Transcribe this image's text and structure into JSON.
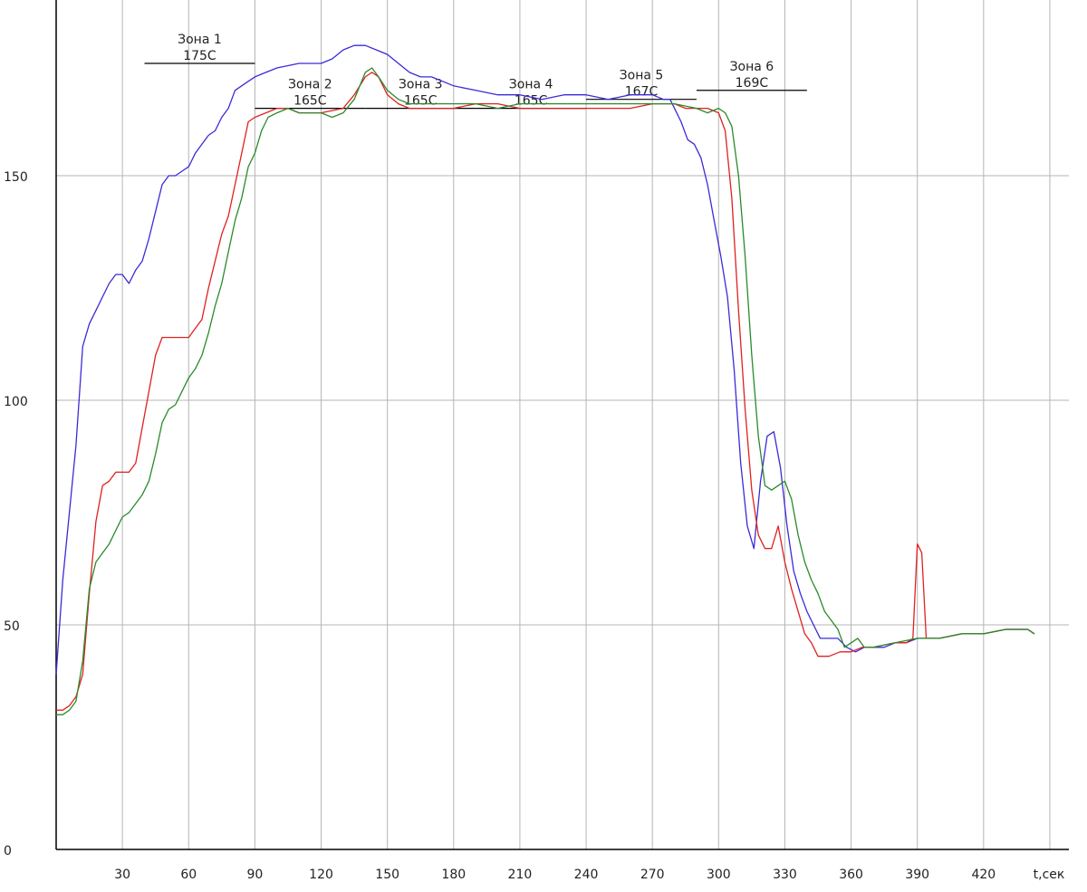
{
  "chart_data": {
    "type": "line",
    "xlabel": "t,сек",
    "ylabel": "",
    "xlim": [
      0,
      460
    ],
    "ylim": [
      0,
      185
    ],
    "x_ticks": [
      30,
      60,
      90,
      120,
      150,
      180,
      210,
      240,
      270,
      300,
      330,
      360,
      390,
      420
    ],
    "y_ticks": [
      0,
      50,
      100,
      150
    ],
    "grid": true,
    "zones": [
      {
        "name": "Зона 1",
        "temp": "175С",
        "x_start": 40,
        "x_end": 90,
        "y": 175
      },
      {
        "name": "Зона 2",
        "temp": "165С",
        "x_start": 90,
        "x_end": 140,
        "y": 165
      },
      {
        "name": "Зона 3",
        "temp": "165С",
        "x_start": 140,
        "x_end": 190,
        "y": 165
      },
      {
        "name": "Зона 4",
        "temp": "165С",
        "x_start": 190,
        "x_end": 240,
        "y": 165
      },
      {
        "name": "Зона 5",
        "temp": "167С",
        "x_start": 240,
        "x_end": 290,
        "y": 167
      },
      {
        "name": "Зона 6",
        "temp": "169С",
        "x_start": 290,
        "x_end": 340,
        "y": 169
      }
    ],
    "series": [
      {
        "color": "#3b2bd8",
        "points": [
          [
            0,
            39
          ],
          [
            3,
            60
          ],
          [
            6,
            75
          ],
          [
            9,
            90
          ],
          [
            12,
            112
          ],
          [
            15,
            117
          ],
          [
            18,
            120
          ],
          [
            21,
            123
          ],
          [
            24,
            126
          ],
          [
            27,
            128
          ],
          [
            30,
            128
          ],
          [
            33,
            126
          ],
          [
            36,
            129
          ],
          [
            39,
            131
          ],
          [
            42,
            136
          ],
          [
            45,
            142
          ],
          [
            48,
            148
          ],
          [
            51,
            150
          ],
          [
            54,
            150
          ],
          [
            57,
            151
          ],
          [
            60,
            152
          ],
          [
            63,
            155
          ],
          [
            66,
            157
          ],
          [
            69,
            159
          ],
          [
            72,
            160
          ],
          [
            75,
            163
          ],
          [
            78,
            165
          ],
          [
            81,
            169
          ],
          [
            84,
            170
          ],
          [
            87,
            171
          ],
          [
            90,
            172
          ],
          [
            95,
            173
          ],
          [
            100,
            174
          ],
          [
            110,
            175
          ],
          [
            120,
            175
          ],
          [
            125,
            176
          ],
          [
            130,
            178
          ],
          [
            135,
            179
          ],
          [
            140,
            179
          ],
          [
            145,
            178
          ],
          [
            150,
            177
          ],
          [
            155,
            175
          ],
          [
            160,
            173
          ],
          [
            165,
            172
          ],
          [
            170,
            172
          ],
          [
            175,
            171
          ],
          [
            180,
            170
          ],
          [
            190,
            169
          ],
          [
            200,
            168
          ],
          [
            210,
            168
          ],
          [
            220,
            167
          ],
          [
            230,
            168
          ],
          [
            240,
            168
          ],
          [
            250,
            167
          ],
          [
            260,
            168
          ],
          [
            270,
            168
          ],
          [
            275,
            167
          ],
          [
            278,
            167
          ],
          [
            280,
            165
          ],
          [
            283,
            162
          ],
          [
            286,
            158
          ],
          [
            289,
            157
          ],
          [
            292,
            154
          ],
          [
            295,
            148
          ],
          [
            298,
            140
          ],
          [
            301,
            132
          ],
          [
            304,
            123
          ],
          [
            307,
            107
          ],
          [
            310,
            86
          ],
          [
            313,
            72
          ],
          [
            316,
            67
          ],
          [
            319,
            82
          ],
          [
            322,
            92
          ],
          [
            325,
            93
          ],
          [
            328,
            85
          ],
          [
            331,
            72
          ],
          [
            334,
            62
          ],
          [
            337,
            57
          ],
          [
            340,
            53
          ],
          [
            343,
            50
          ],
          [
            346,
            47
          ],
          [
            350,
            47
          ],
          [
            354,
            47
          ],
          [
            358,
            45
          ],
          [
            362,
            44
          ],
          [
            366,
            45
          ],
          [
            370,
            45
          ],
          [
            375,
            45
          ],
          [
            380,
            46
          ],
          [
            385,
            46
          ],
          [
            390,
            47
          ],
          [
            400,
            47
          ],
          [
            410,
            48
          ],
          [
            420,
            48
          ],
          [
            430,
            49
          ],
          [
            440,
            49
          ],
          [
            443,
            48
          ]
        ]
      },
      {
        "color": "#e02020",
        "points": [
          [
            0,
            31
          ],
          [
            3,
            31
          ],
          [
            6,
            32
          ],
          [
            9,
            34
          ],
          [
            12,
            39
          ],
          [
            15,
            57
          ],
          [
            18,
            73
          ],
          [
            21,
            81
          ],
          [
            24,
            82
          ],
          [
            27,
            84
          ],
          [
            30,
            84
          ],
          [
            33,
            84
          ],
          [
            36,
            86
          ],
          [
            39,
            94
          ],
          [
            42,
            102
          ],
          [
            45,
            110
          ],
          [
            48,
            114
          ],
          [
            51,
            114
          ],
          [
            54,
            114
          ],
          [
            57,
            114
          ],
          [
            60,
            114
          ],
          [
            63,
            116
          ],
          [
            66,
            118
          ],
          [
            69,
            125
          ],
          [
            72,
            131
          ],
          [
            75,
            137
          ],
          [
            78,
            141
          ],
          [
            81,
            148
          ],
          [
            84,
            155
          ],
          [
            87,
            162
          ],
          [
            90,
            163
          ],
          [
            95,
            164
          ],
          [
            100,
            165
          ],
          [
            105,
            165
          ],
          [
            110,
            164
          ],
          [
            120,
            164
          ],
          [
            130,
            165
          ],
          [
            135,
            168
          ],
          [
            140,
            172
          ],
          [
            143,
            173
          ],
          [
            146,
            172
          ],
          [
            150,
            168
          ],
          [
            155,
            166
          ],
          [
            160,
            165
          ],
          [
            170,
            165
          ],
          [
            180,
            165
          ],
          [
            190,
            166
          ],
          [
            200,
            166
          ],
          [
            210,
            165
          ],
          [
            220,
            165
          ],
          [
            240,
            165
          ],
          [
            260,
            165
          ],
          [
            270,
            166
          ],
          [
            280,
            166
          ],
          [
            285,
            165
          ],
          [
            290,
            165
          ],
          [
            295,
            165
          ],
          [
            300,
            164
          ],
          [
            303,
            160
          ],
          [
            306,
            145
          ],
          [
            309,
            120
          ],
          [
            312,
            98
          ],
          [
            315,
            80
          ],
          [
            318,
            70
          ],
          [
            321,
            67
          ],
          [
            324,
            67
          ],
          [
            327,
            72
          ],
          [
            330,
            64
          ],
          [
            333,
            58
          ],
          [
            336,
            53
          ],
          [
            339,
            48
          ],
          [
            342,
            46
          ],
          [
            345,
            43
          ],
          [
            350,
            43
          ],
          [
            355,
            44
          ],
          [
            360,
            44
          ],
          [
            365,
            45
          ],
          [
            370,
            45
          ],
          [
            380,
            46
          ],
          [
            385,
            46
          ],
          [
            388,
            47
          ],
          [
            390,
            68
          ],
          [
            392,
            66
          ],
          [
            394,
            47
          ],
          [
            400,
            47
          ],
          [
            410,
            48
          ],
          [
            420,
            48
          ],
          [
            430,
            49
          ],
          [
            440,
            49
          ],
          [
            443,
            48
          ]
        ]
      },
      {
        "color": "#2a8a2a",
        "points": [
          [
            0,
            30
          ],
          [
            3,
            30
          ],
          [
            6,
            31
          ],
          [
            9,
            33
          ],
          [
            12,
            42
          ],
          [
            15,
            58
          ],
          [
            18,
            64
          ],
          [
            21,
            66
          ],
          [
            24,
            68
          ],
          [
            27,
            71
          ],
          [
            30,
            74
          ],
          [
            33,
            75
          ],
          [
            36,
            77
          ],
          [
            39,
            79
          ],
          [
            42,
            82
          ],
          [
            45,
            88
          ],
          [
            48,
            95
          ],
          [
            51,
            98
          ],
          [
            54,
            99
          ],
          [
            57,
            102
          ],
          [
            60,
            105
          ],
          [
            63,
            107
          ],
          [
            66,
            110
          ],
          [
            69,
            115
          ],
          [
            72,
            121
          ],
          [
            75,
            126
          ],
          [
            78,
            133
          ],
          [
            81,
            140
          ],
          [
            84,
            145
          ],
          [
            87,
            152
          ],
          [
            90,
            155
          ],
          [
            93,
            160
          ],
          [
            96,
            163
          ],
          [
            100,
            164
          ],
          [
            105,
            165
          ],
          [
            110,
            164
          ],
          [
            120,
            164
          ],
          [
            125,
            163
          ],
          [
            130,
            164
          ],
          [
            135,
            167
          ],
          [
            140,
            173
          ],
          [
            143,
            174
          ],
          [
            146,
            172
          ],
          [
            150,
            169
          ],
          [
            155,
            167
          ],
          [
            160,
            166
          ],
          [
            170,
            166
          ],
          [
            180,
            166
          ],
          [
            190,
            166
          ],
          [
            200,
            165
          ],
          [
            210,
            166
          ],
          [
            220,
            166
          ],
          [
            240,
            166
          ],
          [
            260,
            166
          ],
          [
            270,
            166
          ],
          [
            280,
            166
          ],
          [
            290,
            165
          ],
          [
            295,
            164
          ],
          [
            300,
            165
          ],
          [
            303,
            164
          ],
          [
            306,
            161
          ],
          [
            309,
            150
          ],
          [
            312,
            132
          ],
          [
            315,
            110
          ],
          [
            318,
            92
          ],
          [
            321,
            81
          ],
          [
            324,
            80
          ],
          [
            327,
            81
          ],
          [
            330,
            82
          ],
          [
            333,
            78
          ],
          [
            336,
            70
          ],
          [
            339,
            64
          ],
          [
            342,
            60
          ],
          [
            345,
            57
          ],
          [
            348,
            53
          ],
          [
            351,
            51
          ],
          [
            354,
            49
          ],
          [
            357,
            45
          ],
          [
            360,
            46
          ],
          [
            363,
            47
          ],
          [
            366,
            45
          ],
          [
            370,
            45
          ],
          [
            380,
            46
          ],
          [
            390,
            47
          ],
          [
            400,
            47
          ],
          [
            410,
            48
          ],
          [
            420,
            48
          ],
          [
            430,
            49
          ],
          [
            440,
            49
          ],
          [
            443,
            48
          ]
        ]
      }
    ]
  }
}
